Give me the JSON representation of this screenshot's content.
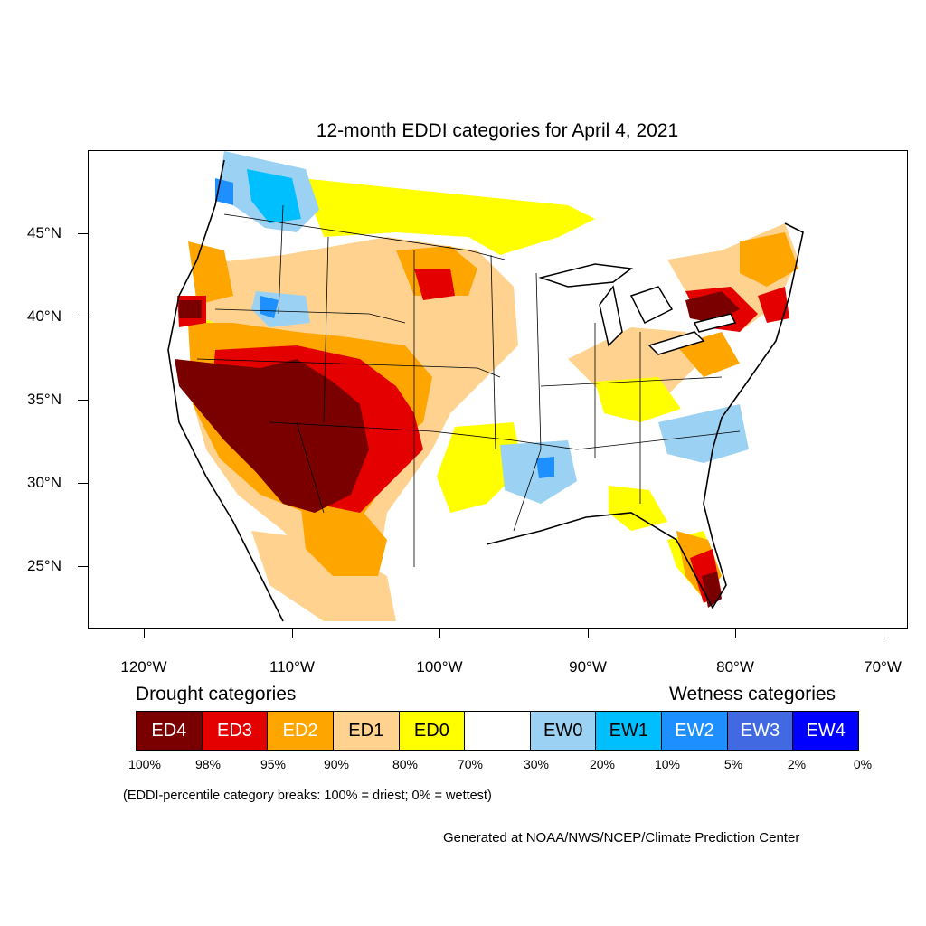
{
  "title": "12-month EDDI categories for April 4, 2021",
  "lat_labels": [
    "45°N",
    "40°N",
    "35°N",
    "30°N",
    "25°N"
  ],
  "lon_labels": [
    "120°W",
    "110°W",
    "100°W",
    "90°W",
    "80°W",
    "70°W"
  ],
  "legend": {
    "drought_heading": "Drought categories",
    "wetness_heading": "Wetness categories",
    "categories": [
      {
        "label": "ED4",
        "color": "#7a0000",
        "text_color": "#ffffff"
      },
      {
        "label": "ED3",
        "color": "#e50000",
        "text_color": "#ffffff"
      },
      {
        "label": "ED2",
        "color": "#ffa500",
        "text_color": "#ffffff"
      },
      {
        "label": "ED1",
        "color": "#ffd38f",
        "text_color": "#000000"
      },
      {
        "label": "ED0",
        "color": "#ffff00",
        "text_color": "#000000"
      },
      {
        "label": "",
        "color": "#ffffff",
        "text_color": "#000000"
      },
      {
        "label": "EW0",
        "color": "#9bd1f2",
        "text_color": "#000000"
      },
      {
        "label": "EW1",
        "color": "#00bfff",
        "text_color": "#000000"
      },
      {
        "label": "EW2",
        "color": "#1e8fff",
        "text_color": "#ffffff"
      },
      {
        "label": "EW3",
        "color": "#4169e1",
        "text_color": "#ffffff"
      },
      {
        "label": "EW4",
        "color": "#0000ff",
        "text_color": "#ffffff"
      }
    ],
    "percentiles": [
      "100%",
      "98%",
      "95%",
      "90%",
      "80%",
      "70%",
      "30%",
      "20%",
      "10%",
      "5%",
      "2%",
      "0%"
    ]
  },
  "note": "(EDDI-percentile category breaks: 100% = driest; 0% = wettest)",
  "credit": "Generated at NOAA/NWS/NCEP/Climate Prediction Center"
}
